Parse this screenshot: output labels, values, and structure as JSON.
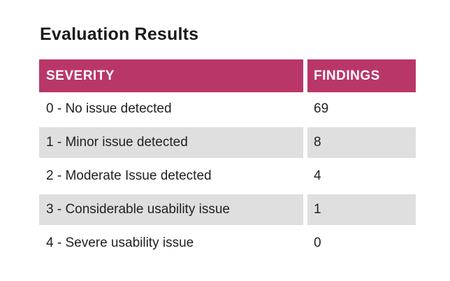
{
  "title": "Evaluation Results",
  "table": {
    "headers": {
      "severity": "SEVERITY",
      "findings": "FINDINGS"
    },
    "rows": [
      {
        "severity": "0 - No issue detected",
        "findings": "69"
      },
      {
        "severity": "1 - Minor issue detected",
        "findings": "8"
      },
      {
        "severity": "2 - Moderate Issue detected",
        "findings": "4"
      },
      {
        "severity": "3 - Considerable usability issue",
        "findings": "1"
      },
      {
        "severity": "4 - Severe usability issue",
        "findings": "0"
      }
    ]
  },
  "colors": {
    "header_bg": "#b93768",
    "header_text": "#ffffff",
    "row_bg": "#ffffff",
    "row_alt_bg": "#dfdfdf",
    "text": "#212121",
    "page_bg": "#ffffff"
  },
  "chart_data": {
    "type": "table",
    "title": "Evaluation Results",
    "columns": [
      "SEVERITY",
      "FINDINGS"
    ],
    "categories": [
      "0 - No issue detected",
      "1 - Minor issue detected",
      "2 - Moderate Issue detected",
      "3 - Considerable usability issue",
      "4 - Severe usability issue"
    ],
    "values": [
      69,
      8,
      4,
      1,
      0
    ],
    "legend_position": "none",
    "grid": false
  }
}
